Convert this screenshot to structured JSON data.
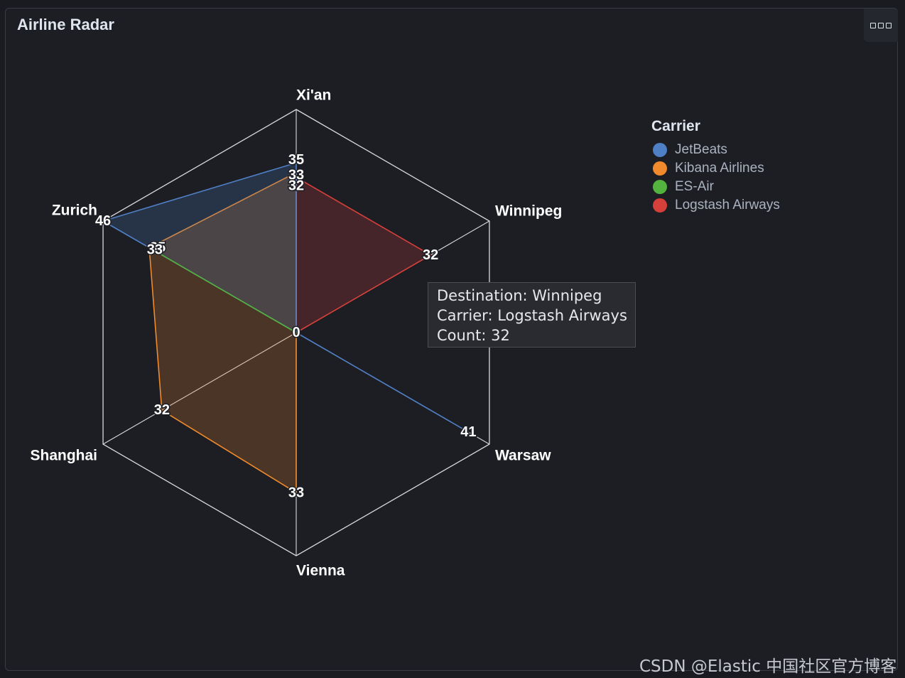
{
  "panel": {
    "title": "Airline Radar"
  },
  "chart_data": {
    "type": "radar",
    "axes": [
      "Xi'an",
      "Winnipeg",
      "Warsaw",
      "Vienna",
      "Shanghai",
      "Zurich"
    ],
    "max": 46,
    "series": [
      {
        "name": "JetBeats",
        "color": "#4f7fc4",
        "values": [
          35,
          null,
          41,
          null,
          null,
          46
        ]
      },
      {
        "name": "Kibana Airlines",
        "color": "#f08a2c",
        "values": [
          33,
          null,
          null,
          33,
          32,
          35
        ]
      },
      {
        "name": "ES-Air",
        "color": "#54b23e",
        "values": [
          null,
          null,
          null,
          null,
          null,
          33
        ]
      },
      {
        "name": "Logstash Airways",
        "color": "#d6403a",
        "values": [
          32,
          32,
          null,
          null,
          null,
          null
        ]
      }
    ],
    "center_label": "0",
    "legend": {
      "title": "Carrier",
      "placement": "right"
    }
  },
  "tooltip": {
    "lines": [
      "Destination: Winnipeg",
      "Carrier: Logstash Airways",
      "Count: 32"
    ]
  },
  "watermark": "CSDN @Elastic 中国社区官方博客"
}
